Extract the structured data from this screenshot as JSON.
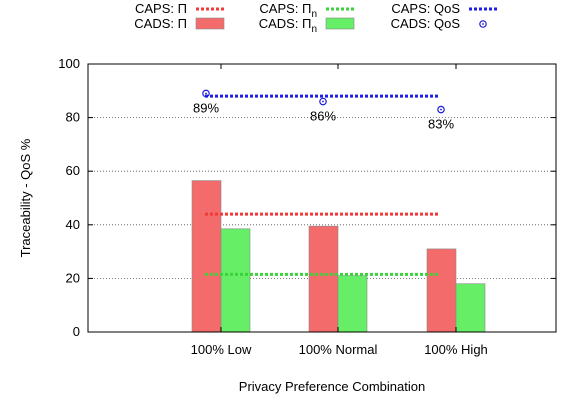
{
  "chart_data": {
    "type": "bar",
    "categories": [
      "100% Low",
      "100% Normal",
      "100% High"
    ],
    "xlabel": "Privacy Preference Combination",
    "ylabel": "Traceability - QoS %",
    "ylim": [
      0,
      100
    ],
    "yticks": [
      0,
      20,
      40,
      60,
      80,
      100
    ],
    "grid": true,
    "legend_position": "top",
    "bar_series": [
      {
        "name": "CADS: Π",
        "values": [
          56.5,
          39.5,
          31
        ],
        "color": "#f46b6b"
      },
      {
        "name": "CADS: Πn",
        "values": [
          38.5,
          21,
          18
        ],
        "color": "#66ef66"
      }
    ],
    "line_series": [
      {
        "name": "CAPS: Π",
        "values": [
          44,
          44,
          44
        ],
        "color": "#f03a3a"
      },
      {
        "name": "CAPS: Πn",
        "values": [
          21.5,
          21.5,
          21.5
        ],
        "color": "#3dd13d"
      },
      {
        "name": "CAPS: QoS",
        "values": [
          88,
          88,
          88
        ],
        "color": "#1e1ee8"
      }
    ],
    "point_series": [
      {
        "name": "CADS: QoS",
        "values": [
          89,
          86,
          83
        ],
        "labels": [
          "89%",
          "86%",
          "83%"
        ],
        "color": "#1a1adf"
      }
    ]
  }
}
